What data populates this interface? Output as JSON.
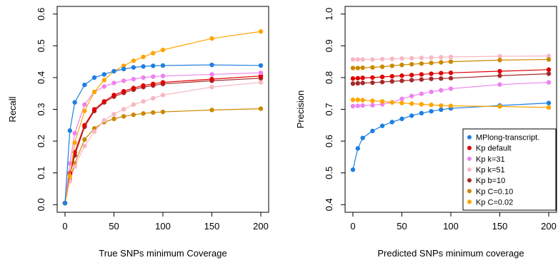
{
  "chart_data": [
    {
      "type": "line",
      "title": "",
      "xlabel": "True SNPs minimum Coverage",
      "ylabel": "Recall",
      "xlim": [
        0,
        200
      ],
      "ylim": [
        0.0,
        0.6
      ],
      "xticks": [
        0,
        50,
        100,
        150,
        200
      ],
      "yticks": [
        0.0,
        0.1,
        0.2,
        0.3,
        0.4,
        0.5,
        0.6
      ],
      "x": [
        0,
        5,
        10,
        20,
        30,
        40,
        50,
        60,
        70,
        80,
        90,
        100,
        150,
        200
      ],
      "legend": "none",
      "series": [
        {
          "name": "Kp C=0.10",
          "color": "#cc8800",
          "values": [
            0.005,
            0.08,
            0.13,
            0.205,
            0.24,
            0.26,
            0.27,
            0.278,
            0.283,
            0.287,
            0.29,
            0.292,
            0.298,
            0.302
          ]
        },
        {
          "name": "Kp k=51",
          "color": "#f7b8c2",
          "values": [
            0.005,
            0.075,
            0.12,
            0.185,
            0.23,
            0.265,
            0.285,
            0.3,
            0.315,
            0.325,
            0.335,
            0.345,
            0.37,
            0.385
          ]
        },
        {
          "name": "Kp b=10",
          "color": "#a52a2a",
          "values": [
            0.005,
            0.095,
            0.155,
            0.245,
            0.295,
            0.322,
            0.34,
            0.352,
            0.362,
            0.37,
            0.375,
            0.38,
            0.39,
            0.398
          ]
        },
        {
          "name": "Kp default",
          "color": "#e00000",
          "values": [
            0.005,
            0.1,
            0.165,
            0.25,
            0.3,
            0.325,
            0.345,
            0.357,
            0.367,
            0.375,
            0.38,
            0.385,
            0.395,
            0.405
          ]
        },
        {
          "name": "Kp k=31",
          "color": "#ee82ee",
          "values": [
            0.005,
            0.13,
            0.225,
            0.315,
            0.355,
            0.372,
            0.383,
            0.39,
            0.395,
            0.4,
            0.403,
            0.405,
            0.41,
            0.415
          ]
        },
        {
          "name": "Kp C=0.02",
          "color": "#ffa500",
          "values": [
            0.005,
            0.09,
            0.195,
            0.295,
            0.355,
            0.392,
            0.42,
            0.437,
            0.453,
            0.465,
            0.477,
            0.487,
            0.523,
            0.545
          ]
        },
        {
          "name": "MPlong-transcript.",
          "color": "#1e7fe0",
          "values": [
            0.005,
            0.233,
            0.322,
            0.377,
            0.4,
            0.41,
            0.42,
            0.427,
            0.432,
            0.435,
            0.437,
            0.438,
            0.44,
            0.438
          ]
        }
      ]
    },
    {
      "type": "line",
      "title": "",
      "xlabel": "Predicted SNPs minimum coverage",
      "ylabel": "Precision",
      "xlim": [
        0,
        200
      ],
      "ylim": [
        0.4,
        1.0
      ],
      "xticks": [
        0,
        50,
        100,
        150,
        200
      ],
      "yticks": [
        0.4,
        0.5,
        0.6,
        0.7,
        0.8,
        0.9,
        1.0
      ],
      "x": [
        0,
        5,
        10,
        20,
        30,
        40,
        50,
        60,
        70,
        80,
        90,
        100,
        150,
        200
      ],
      "legend": "bottom-right",
      "series": [
        {
          "name": "MPlong-transcript.",
          "color": "#1e7fe0",
          "values": [
            0.51,
            0.577,
            0.61,
            0.632,
            0.648,
            0.66,
            0.67,
            0.68,
            0.688,
            0.694,
            0.699,
            0.703,
            0.712,
            0.72
          ]
        },
        {
          "name": "Kp default",
          "color": "#e00000",
          "values": [
            0.797,
            0.798,
            0.799,
            0.8,
            0.802,
            0.804,
            0.806,
            0.808,
            0.81,
            0.812,
            0.814,
            0.815,
            0.82,
            0.825
          ]
        },
        {
          "name": "Kp k=31",
          "color": "#ee82ee",
          "values": [
            0.71,
            0.711,
            0.712,
            0.713,
            0.716,
            0.722,
            0.733,
            0.742,
            0.749,
            0.755,
            0.76,
            0.765,
            0.778,
            0.785
          ]
        },
        {
          "name": "Kp k=51",
          "color": "#f7b8c2",
          "values": [
            0.857,
            0.857,
            0.857,
            0.857,
            0.858,
            0.859,
            0.86,
            0.861,
            0.862,
            0.863,
            0.864,
            0.865,
            0.867,
            0.868
          ]
        },
        {
          "name": "Kp b=10",
          "color": "#a52a2a",
          "values": [
            0.781,
            0.782,
            0.783,
            0.784,
            0.786,
            0.788,
            0.79,
            0.792,
            0.794,
            0.796,
            0.797,
            0.798,
            0.806,
            0.812
          ]
        },
        {
          "name": "Kp C=0.10",
          "color": "#cc8800",
          "values": [
            0.83,
            0.83,
            0.831,
            0.832,
            0.834,
            0.837,
            0.84,
            0.842,
            0.844,
            0.846,
            0.848,
            0.85,
            0.855,
            0.857
          ]
        },
        {
          "name": "Kp C=0.02",
          "color": "#ffa500",
          "values": [
            0.73,
            0.73,
            0.729,
            0.727,
            0.725,
            0.722,
            0.72,
            0.718,
            0.716,
            0.714,
            0.712,
            0.711,
            0.709,
            0.706
          ]
        }
      ]
    }
  ]
}
